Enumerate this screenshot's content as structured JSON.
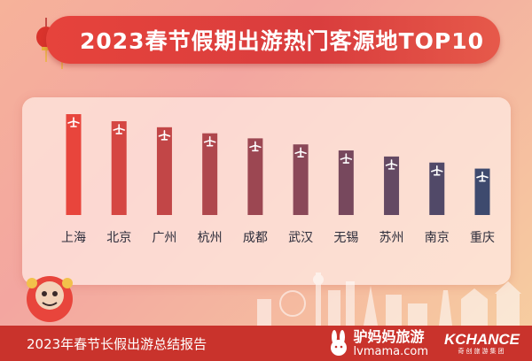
{
  "header": {
    "title": "2023春节假期出游热门客源地TOP10"
  },
  "chart_data": {
    "type": "bar",
    "title": "2023春节假期出游热门客源地TOP10",
    "xlabel": "",
    "ylabel": "",
    "categories": [
      "上海",
      "北京",
      "广州",
      "杭州",
      "成都",
      "武汉",
      "无锡",
      "苏州",
      "南京",
      "重庆"
    ],
    "values": [
      10,
      9.3,
      8.7,
      8.1,
      7.6,
      7.0,
      6.4,
      5.8,
      5.2,
      4.6
    ],
    "ylim": [
      0,
      10
    ],
    "value_axis_shown": false,
    "grid": false,
    "bar_icon": "airplane-icon",
    "colors": {
      "top": "#e8453c",
      "bottom": "#3e4a6e"
    }
  },
  "footer": {
    "caption": "2023年春节长假出游总结报告",
    "brand_lvmama_cn": "驴妈妈旅游",
    "brand_lvmama_en": "lvmama.com",
    "brand_kchance": "KCHANCE",
    "brand_kchance_sub": "奇创旅游集团"
  },
  "colors": {
    "title_bg": "#e6433c",
    "footer_bg": "#c9332c",
    "panel_bg": "#ffebe4"
  }
}
